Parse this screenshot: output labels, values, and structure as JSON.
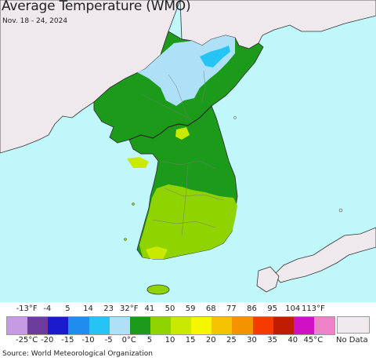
{
  "header": {
    "title": "Average Temperature (WMO)",
    "subtitle": "Nov. 18 - 24, 2024"
  },
  "map": {
    "ocean_color": "#bff7fb",
    "land_nodata_color": "#efe8ed",
    "border_color": "#333333",
    "province_line_color": "#7a7a7a"
  },
  "legend": {
    "fahrenheit_labels": [
      "-13°F",
      "-4",
      "5",
      "14",
      "23",
      "32°F",
      "41",
      "50",
      "59",
      "68",
      "77",
      "86",
      "95",
      "104",
      "113°F"
    ],
    "celsius_labels": [
      "-25°C",
      "-20",
      "-15",
      "-10",
      "-5",
      "0°C",
      "5",
      "10",
      "15",
      "20",
      "25",
      "30",
      "35",
      "40",
      "45°C"
    ],
    "colors": [
      "#c79be3",
      "#6b3c9c",
      "#1b1bcd",
      "#1f8cf0",
      "#25c4f5",
      "#aee0f7",
      "#1c9b1a",
      "#8fd400",
      "#c9ea00",
      "#f6f600",
      "#f6c300",
      "#f59200",
      "#f53b00",
      "#c01c00",
      "#d010c4",
      "#ee82c8"
    ],
    "no_data_label": "No Data",
    "no_data_color": "#f0e9ee"
  },
  "footer": {
    "source": "Source: World Meteorological Organization"
  }
}
